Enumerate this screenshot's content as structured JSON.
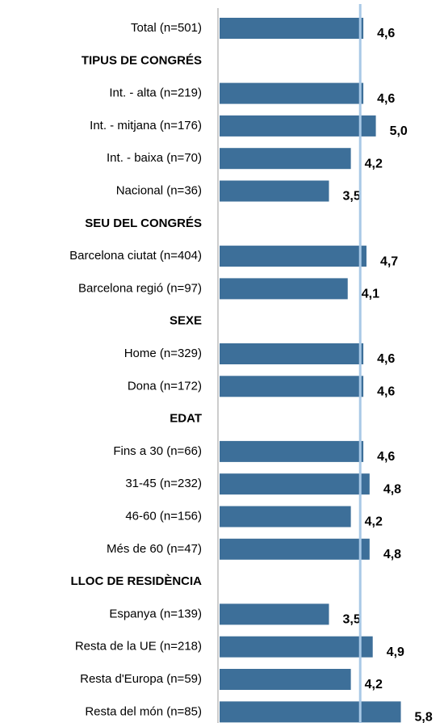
{
  "chart_data": {
    "type": "bar",
    "orientation": "horizontal",
    "categories": [
      "Total (n=501)",
      "TIPUS DE CONGRÉS",
      "Int. - alta (n=219)",
      "Int. - mitjana (n=176)",
      "Int. - baixa (n=70)",
      "Nacional (n=36)",
      "SEU DEL CONGRÉS",
      "Barcelona ciutat (n=404)",
      "Barcelona regió (n=97)",
      "SEXE",
      "Home (n=329)",
      "Dona (n=172)",
      "EDAT",
      "Fins a 30 (n=66)",
      "31-45 (n=232)",
      "46-60 (n=156)",
      "Més de 60 (n=47)",
      "LLOC DE RESIDÈNCIA",
      "Espanya (n=139)",
      "Resta de la UE (n=218)",
      "Resta d'Europa (n=59)",
      "Resta del món (n=85)"
    ],
    "values": [
      4.6,
      null,
      4.6,
      5.0,
      4.2,
      3.5,
      null,
      4.7,
      4.1,
      null,
      4.6,
      4.6,
      null,
      4.6,
      4.8,
      4.2,
      4.8,
      null,
      3.5,
      4.9,
      4.2,
      5.8
    ],
    "value_labels": [
      "4,6",
      null,
      "4,6",
      "5,0",
      "4,2",
      "3,5",
      null,
      "4,7",
      "4,1",
      null,
      "4,6",
      "4,6",
      null,
      "4,6",
      "4,8",
      "4,2",
      "4,8",
      null,
      "3,5",
      "4,9",
      "4,2",
      "5,8"
    ],
    "color": "#3d6f99",
    "reference_line": 4.5,
    "reference_color": "#a9c9e6",
    "xlim": [
      0,
      7
    ]
  }
}
